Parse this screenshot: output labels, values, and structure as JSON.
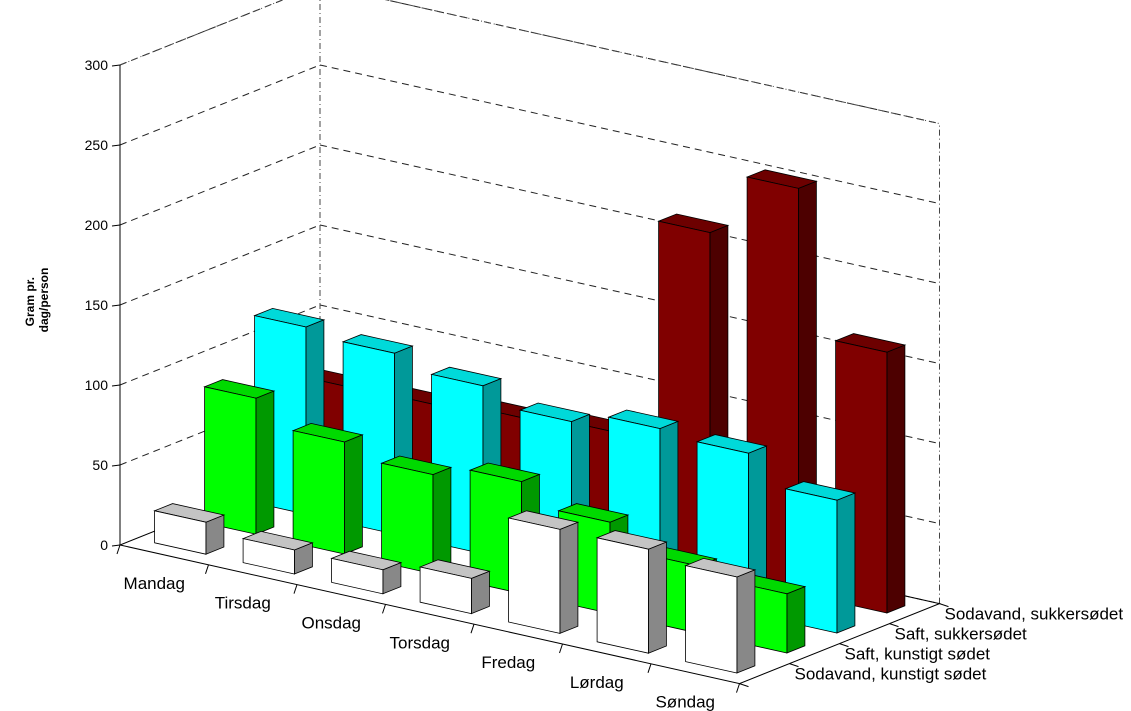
{
  "chart_data": {
    "type": "bar",
    "subtype": "3d-grouped",
    "ylabel": [
      "Gram pr.",
      "dag/person"
    ],
    "ylim": [
      0,
      300
    ],
    "yticks": [
      0,
      50,
      100,
      150,
      200,
      250,
      300
    ],
    "categories": [
      "Mandag",
      "Tirsdag",
      "Onsdag",
      "Torsdag",
      "Fredag",
      "Lørdag",
      "Søndag"
    ],
    "series": [
      {
        "name": "Sodavand, kunstigt sødet",
        "color": "#ffffff",
        "values": [
          20,
          15,
          15,
          22,
          65,
          65,
          60
        ]
      },
      {
        "name": "Saft, kunstigt sødet",
        "color": "#00ff00",
        "values": [
          85,
          70,
          62,
          70,
          57,
          42,
          37
        ]
      },
      {
        "name": "Saft, sukkersødet",
        "color": "#00ffff",
        "values": [
          117,
          113,
          105,
          95,
          103,
          100,
          83
        ]
      },
      {
        "name": "Sodavand, sukkersødet",
        "color": "#800000",
        "values": [
          66,
          67,
          71,
          75,
          213,
          253,
          163
        ]
      }
    ],
    "grid": true
  }
}
